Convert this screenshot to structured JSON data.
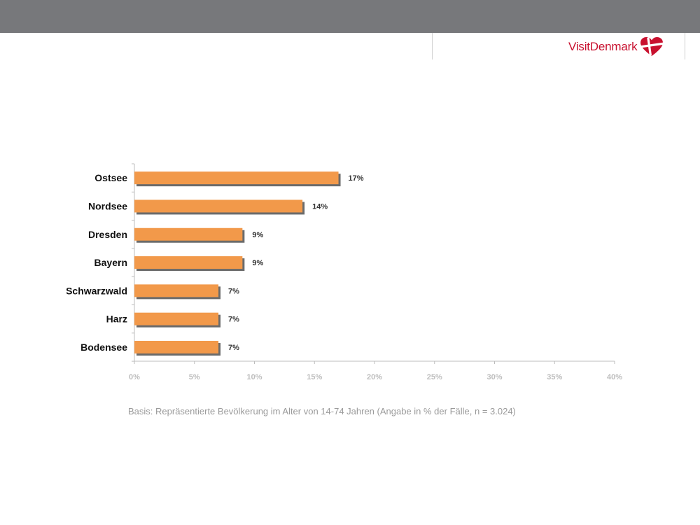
{
  "brand": {
    "name": "VisitDenmark",
    "color": "#c8102e"
  },
  "colors": {
    "topbar": "#77787b",
    "bar": "#f2994a",
    "bar_shadow": "#6b6b6b",
    "axis": "#bdbdbd"
  },
  "chart_data": {
    "type": "bar",
    "orientation": "horizontal",
    "categories": [
      "Ostsee",
      "Nordsee",
      "Dresden",
      "Bayern",
      "Schwarzwald",
      "Harz",
      "Bodensee"
    ],
    "values": [
      17,
      14,
      9,
      9,
      7,
      7,
      7
    ],
    "value_labels": [
      "17%",
      "14%",
      "9%",
      "9%",
      "7%",
      "7%",
      "7%"
    ],
    "xlim": [
      0,
      40
    ],
    "xticks": [
      0,
      5,
      10,
      15,
      20,
      25,
      30,
      35,
      40
    ],
    "xtick_labels": [
      "0%",
      "5%",
      "10%",
      "15%",
      "20%",
      "25%",
      "30%",
      "35%",
      "40%"
    ],
    "title": "",
    "xlabel": "",
    "ylabel": "",
    "grid": false,
    "legend": "none"
  },
  "footnote": "Basis: Repräsentierte Bevölkerung im Alter von 14-74 Jahren (Angabe in % der Fälle, n = 3.024)"
}
